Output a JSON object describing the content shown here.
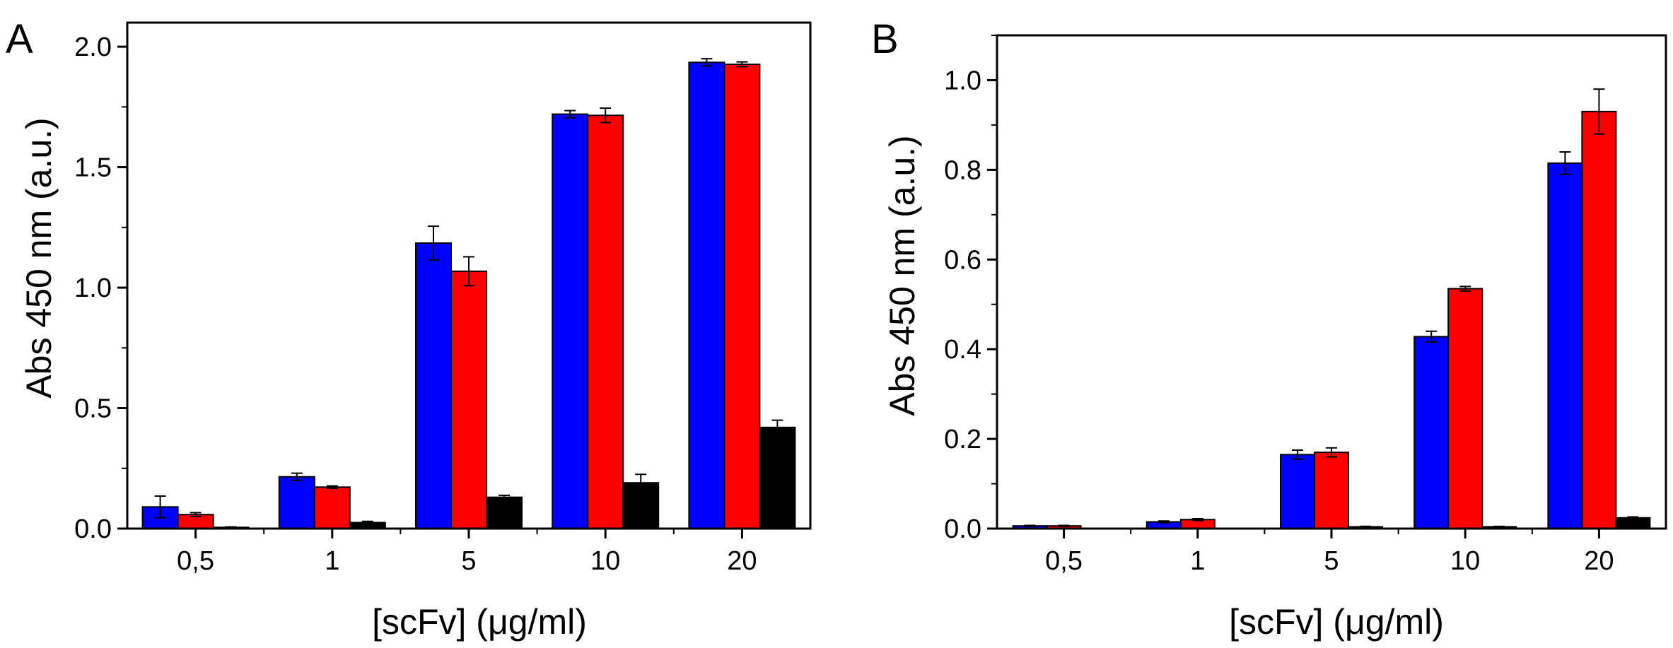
{
  "chart_data": [
    {
      "panel_label": "A",
      "type": "bar",
      "xlabel": "[scFv] (μg/ml)",
      "ylabel": "Abs 450 nm (a.u.)",
      "categories": [
        "0,5",
        "1",
        "5",
        "10",
        "20"
      ],
      "ylim": [
        0,
        2.1
      ],
      "yticks": [
        "0.0",
        "0.5",
        "1.0",
        "1.5",
        "2.0"
      ],
      "ytick_values": [
        0,
        0.5,
        1.0,
        1.5,
        2.0
      ],
      "series": [
        {
          "color": "#0000ff",
          "values": [
            0.09,
            0.215,
            1.185,
            1.72,
            1.935
          ],
          "errors": [
            0.045,
            0.015,
            0.07,
            0.015,
            0.015
          ]
        },
        {
          "color": "#ff0000",
          "values": [
            0.058,
            0.172,
            1.068,
            1.715,
            1.927
          ],
          "errors": [
            0.008,
            0.005,
            0.06,
            0.03,
            0.01
          ]
        },
        {
          "color": "#000000",
          "values": [
            0.005,
            0.025,
            0.13,
            0.19,
            0.42
          ],
          "errors": [
            0.002,
            0.005,
            0.008,
            0.035,
            0.03
          ]
        }
      ]
    },
    {
      "panel_label": "B",
      "type": "bar",
      "xlabel": "[scFv] (μg/ml)",
      "ylabel": "Abs 450 nm (a.u.)",
      "categories": [
        "0,5",
        "1",
        "5",
        "10",
        "20"
      ],
      "ylim": [
        0,
        1.1
      ],
      "yticks": [
        "0.0",
        "0.2",
        "0.4",
        "0.6",
        "0.8",
        "1.0"
      ],
      "ytick_values": [
        0,
        0.2,
        0.4,
        0.6,
        0.8,
        1.0
      ],
      "series": [
        {
          "color": "#0000ff",
          "values": [
            0.006,
            0.015,
            0.165,
            0.428,
            0.815
          ],
          "errors": [
            0.001,
            0.002,
            0.01,
            0.012,
            0.025
          ]
        },
        {
          "color": "#ff0000",
          "values": [
            0.006,
            0.02,
            0.17,
            0.535,
            0.93
          ],
          "errors": [
            0.001,
            0.002,
            0.01,
            0.005,
            0.05
          ]
        },
        {
          "color": "#000000",
          "values": [
            0.0,
            0.0,
            0.004,
            0.004,
            0.024
          ],
          "errors": [
            0,
            0,
            0.001,
            0.001,
            0.002
          ]
        }
      ]
    }
  ]
}
